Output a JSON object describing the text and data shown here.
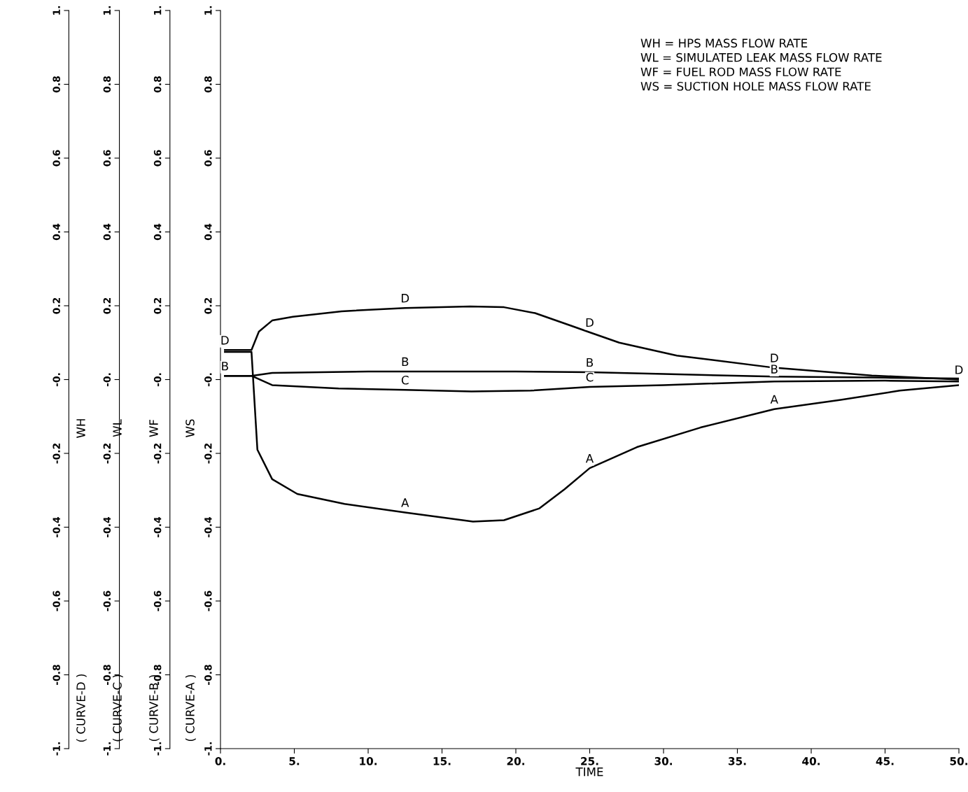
{
  "chart_data": {
    "type": "line",
    "xlabel": "TIME",
    "xlim": [
      0,
      50
    ],
    "xticks": [
      {
        "value": 0,
        "label": "0."
      },
      {
        "value": 5,
        "label": "5."
      },
      {
        "value": 10,
        "label": "10."
      },
      {
        "value": 15,
        "label": "15."
      },
      {
        "value": 20,
        "label": "20."
      },
      {
        "value": 25,
        "label": "25."
      },
      {
        "value": 30,
        "label": "30."
      },
      {
        "value": 35,
        "label": "35."
      },
      {
        "value": 40,
        "label": "40."
      },
      {
        "value": 45,
        "label": "45."
      },
      {
        "value": 50,
        "label": "50."
      }
    ],
    "ylim": [
      -1,
      1
    ],
    "yticks": [
      {
        "value": -1,
        "label": "-1."
      },
      {
        "value": -0.8,
        "label": "-0.8"
      },
      {
        "value": -0.6,
        "label": "-0.6"
      },
      {
        "value": -0.4,
        "label": "-0.4"
      },
      {
        "value": -0.2,
        "label": "-0.2"
      },
      {
        "value": 0,
        "label": "-0."
      },
      {
        "value": 0.2,
        "label": "0.2"
      },
      {
        "value": 0.4,
        "label": "0.4"
      },
      {
        "value": 0.6,
        "label": "0.6"
      },
      {
        "value": 0.8,
        "label": "0.8"
      },
      {
        "value": 1,
        "label": "1."
      }
    ],
    "y2lim": [
      -1,
      1
    ],
    "y2ticks": [
      {
        "value": -1,
        "label": "-1."
      },
      {
        "value": -0.8,
        "label": "-0.8"
      },
      {
        "value": -0.6,
        "label": "-0.6"
      },
      {
        "value": -0.4,
        "label": "-0.4"
      },
      {
        "value": -0.2,
        "label": "-0.2"
      },
      {
        "value": 0,
        "label": "-0."
      },
      {
        "value": 0.2,
        "label": "0.2"
      },
      {
        "value": 0.4,
        "label": "0.4"
      },
      {
        "value": 0.6,
        "label": "0.6"
      },
      {
        "value": 0.8,
        "label": "0.8"
      },
      {
        "value": 1,
        "label": "1."
      }
    ],
    "y3lim": [
      -1,
      1
    ],
    "y3ticks": [
      {
        "value": -1,
        "label": "-1."
      },
      {
        "value": -0.8,
        "label": "-0.8"
      },
      {
        "value": -0.6,
        "label": "-0.6"
      },
      {
        "value": -0.4,
        "label": "-0.4"
      },
      {
        "value": -0.2,
        "label": "-0.2"
      },
      {
        "value": 0,
        "label": "-0."
      },
      {
        "value": 0.2,
        "label": "0.2"
      },
      {
        "value": 0.4,
        "label": "0.4"
      },
      {
        "value": 0.6,
        "label": "0.6"
      },
      {
        "value": 0.8,
        "label": "0.8"
      },
      {
        "value": 1,
        "label": "1."
      }
    ],
    "grid": false,
    "marker": "none",
    "line_style": "solid",
    "series": [
      {
        "color": "#000000",
        "x": [
          0.3,
          2.1,
          2.5,
          3.5,
          5.2,
          8.4,
          12.5,
          17.1,
          19.2,
          21.6,
          23.3,
          25,
          28.2,
          32.5,
          37.5,
          42,
          46,
          50
        ],
        "values": [
          0.075,
          0.075,
          -0.19,
          -0.27,
          -0.31,
          -0.337,
          -0.36,
          -0.385,
          -0.381,
          -0.349,
          -0.297,
          -0.24,
          -0.183,
          -0.13,
          -0.08,
          -0.055,
          -0.03,
          -0.015
        ]
      },
      {
        "color": "#000000",
        "x": [
          0.3,
          2.1,
          3.5,
          10,
          12.5,
          20,
          25,
          30,
          37.5,
          45,
          50
        ],
        "values": [
          0.01,
          0.01,
          0.018,
          0.022,
          0.022,
          0.022,
          0.02,
          0.015,
          0.008,
          0.005,
          0.003
        ]
      },
      {
        "color": "#000000",
        "x": [
          0.3,
          2.1,
          3.5,
          8,
          12.5,
          17,
          21,
          25,
          30,
          37.5,
          45,
          50
        ],
        "values": [
          0.01,
          0.01,
          -0.015,
          -0.024,
          -0.028,
          -0.032,
          -0.03,
          -0.02,
          -0.015,
          -0.005,
          -0.003,
          -0.005
        ]
      },
      {
        "color": "#000000",
        "x": [
          0.3,
          2.1,
          2.6,
          3.5,
          4.9,
          8.2,
          12.5,
          16.9,
          19.2,
          21.3,
          23.8,
          25,
          27,
          30.9,
          37.5,
          44.1,
          50
        ],
        "values": [
          0.08,
          0.08,
          0.13,
          0.16,
          0.17,
          0.185,
          0.194,
          0.198,
          0.196,
          0.18,
          0.145,
          0.128,
          0.1,
          0.065,
          0.032,
          0.011,
          0
        ]
      }
    ],
    "annotations": [
      "WH",
      "WL",
      "WF",
      "WS",
      "( CURVE-D )",
      "( CURVE-C )",
      "( CURVE-B )",
      "( CURVE-A )",
      "WH = HPS MASS FLOW RATE\nWL = SIMULATED LEAK MASS FLOW RATE\nWF = FUEL ROD MASS FLOW RATE\nWS = SUCTION HOLE MASS FLOW RATE",
      {
        "text": "D",
        "x": 0.3,
        "y": 0.08
      },
      {
        "text": "B",
        "x": 0.3,
        "y": 0.01
      },
      {
        "text": "D",
        "x": 12.5,
        "y": 0.194
      },
      {
        "text": "B",
        "x": 12.5,
        "y": 0.022
      },
      {
        "text": "C",
        "x": 12.5,
        "y": -0.028
      },
      {
        "text": "A",
        "x": 12.5,
        "y": -0.36
      },
      {
        "text": "D",
        "x": 25,
        "y": 0.128
      },
      {
        "text": "B",
        "x": 25,
        "y": 0.02
      },
      {
        "text": "C",
        "x": 25,
        "y": -0.02
      },
      {
        "text": "A",
        "x": 25,
        "y": -0.24
      },
      {
        "text": "D",
        "x": 37.5,
        "y": 0.032
      },
      {
        "text": "B",
        "x": 37.5,
        "y": 0.008
      },
      {
        "text": "A",
        "x": 37.5,
        "y": -0.08
      },
      {
        "text": "D",
        "x": 50,
        "y": 0
      }
    ]
  }
}
